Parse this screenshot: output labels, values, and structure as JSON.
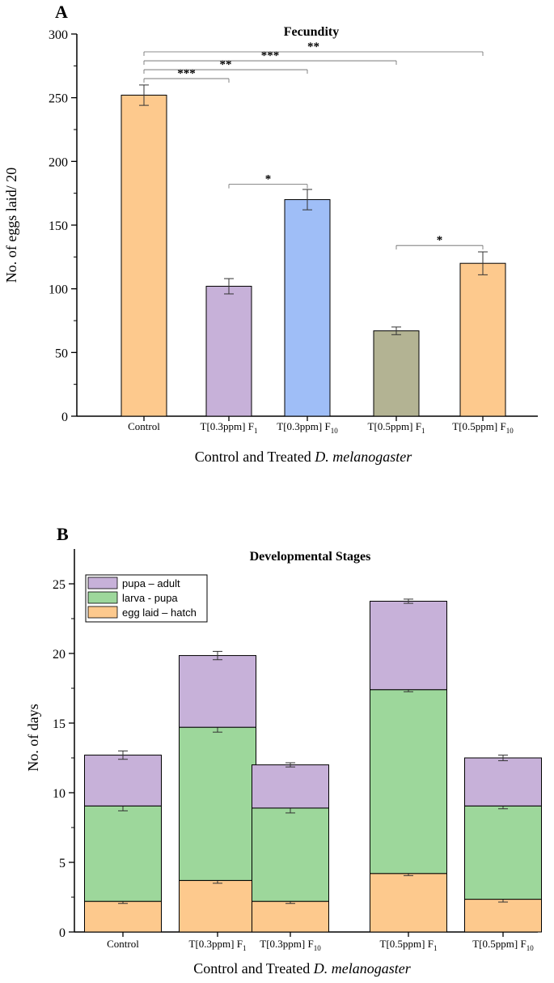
{
  "chart_data": [
    {
      "panel": "A",
      "type": "bar",
      "title": "Fecundity",
      "xlabel_prefix": "Control and Treated ",
      "xlabel_italic": "D. melanogaster",
      "ylabel": "No. of eggs laid/ 20",
      "ylim": [
        0,
        300
      ],
      "yticks": [
        0,
        50,
        100,
        150,
        200,
        250,
        300
      ],
      "categories": [
        {
          "base": "Control",
          "sub": ""
        },
        {
          "base": "T[0.3ppm] F",
          "sub": "1"
        },
        {
          "base": "T[0.3ppm] F",
          "sub": "10"
        },
        {
          "base": "T[0.5ppm] F",
          "sub": "1"
        },
        {
          "base": "T[0.5ppm] F",
          "sub": "10"
        }
      ],
      "values": [
        252,
        102,
        170,
        67,
        120
      ],
      "errors": [
        8,
        6,
        8,
        3,
        9
      ],
      "colors": [
        "#fdc98d",
        "#c7b1d9",
        "#9fbef7",
        "#b3b393",
        "#fdc98d"
      ],
      "significance": [
        {
          "from": 0,
          "to": 1,
          "label": "***",
          "y": 265
        },
        {
          "from": 0,
          "to": 2,
          "label": "**",
          "y": 272
        },
        {
          "from": 0,
          "to": 3,
          "label": "***",
          "y": 279
        },
        {
          "from": 0,
          "to": 4,
          "label": "**",
          "y": 286
        },
        {
          "from": 1,
          "to": 2,
          "label": "*",
          "y": 182
        },
        {
          "from": 3,
          "to": 4,
          "label": "*",
          "y": 134
        }
      ]
    },
    {
      "panel": "B",
      "type": "bar",
      "stacked": true,
      "title": "Developmental Stages",
      "xlabel_prefix": "Control and Treated ",
      "xlabel_italic": "D. melanogaster",
      "ylabel": "No. of days",
      "ylim": [
        0,
        27.5
      ],
      "yticks": [
        0,
        5,
        10,
        15,
        20,
        25
      ],
      "categories": [
        {
          "base": "Control",
          "sub": ""
        },
        {
          "base": "T[0.3ppm] F",
          "sub": "1"
        },
        {
          "base": "T[0.3ppm] F",
          "sub": "10"
        },
        {
          "base": "T[0.5ppm] F",
          "sub": "1"
        },
        {
          "base": "T[0.5ppm] F",
          "sub": "10"
        }
      ],
      "series": [
        {
          "name": "egg laid – hatch",
          "color": "#fdc98d",
          "values": [
            2.2,
            3.7,
            2.2,
            4.2,
            2.35
          ],
          "errors": [
            0.15,
            0.2,
            0.15,
            0.15,
            0.2
          ]
        },
        {
          "name": "larva - pupa",
          "color": "#9dd79b",
          "values": [
            6.85,
            11.0,
            6.7,
            13.2,
            6.7
          ],
          "errors": [
            0.35,
            0.35,
            0.35,
            0.15,
            0.2
          ]
        },
        {
          "name": "pupa – adult",
          "color": "#c7b1d9",
          "values": [
            3.65,
            5.15,
            3.1,
            6.35,
            3.45
          ],
          "errors": [
            0.3,
            0.3,
            0.15,
            0.15,
            0.2
          ]
        }
      ],
      "legend": {
        "position": "top-left",
        "order": [
          "pupa – adult",
          "larva - pupa",
          "egg laid – hatch"
        ]
      }
    }
  ]
}
